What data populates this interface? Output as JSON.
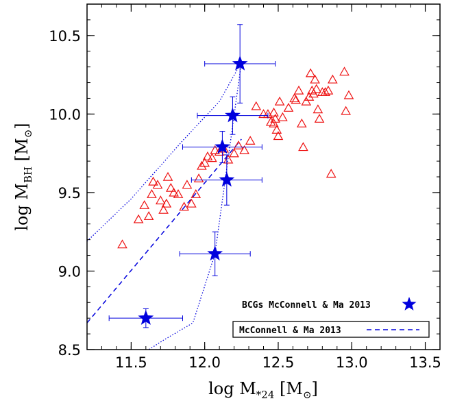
{
  "chart_data": {
    "type": "scatter",
    "xlabel": {
      "main": "log M",
      "sub": "*24",
      "unit": "[M",
      "sun": "⊙",
      "close": "]"
    },
    "ylabel": {
      "main": "log M",
      "sub": "BH",
      "unit": "[M",
      "sun": "⊙",
      "close": "]"
    },
    "xlim": [
      11.2,
      13.6
    ],
    "ylim": [
      8.5,
      10.7
    ],
    "xticks": [
      "11.5",
      "12.0",
      "12.5",
      "13.0",
      "13.5"
    ],
    "yticks": [
      "8.5",
      "9.0",
      "9.5",
      "10.0",
      "10.5"
    ],
    "grid": false,
    "colors": {
      "triangles": "#ee1111",
      "stars": "#0000dd",
      "relation": "#0000dd",
      "axis": "#000000"
    },
    "triangles": [
      [
        11.44,
        9.17
      ],
      [
        11.55,
        9.33
      ],
      [
        11.59,
        9.42
      ],
      [
        11.62,
        9.35
      ],
      [
        11.64,
        9.49
      ],
      [
        11.65,
        9.57
      ],
      [
        11.68,
        9.55
      ],
      [
        11.7,
        9.45
      ],
      [
        11.72,
        9.39
      ],
      [
        11.74,
        9.43
      ],
      [
        11.75,
        9.6
      ],
      [
        11.77,
        9.53
      ],
      [
        11.79,
        9.5
      ],
      [
        11.82,
        9.49
      ],
      [
        11.86,
        9.41
      ],
      [
        11.88,
        9.55
      ],
      [
        11.91,
        9.43
      ],
      [
        11.94,
        9.49
      ],
      [
        11.96,
        9.59
      ],
      [
        11.98,
        9.67
      ],
      [
        12.0,
        9.69
      ],
      [
        12.02,
        9.73
      ],
      [
        12.05,
        9.72
      ],
      [
        12.07,
        9.77
      ],
      [
        12.1,
        9.76
      ],
      [
        12.13,
        9.78
      ],
      [
        12.16,
        9.71
      ],
      [
        12.2,
        9.75
      ],
      [
        12.23,
        9.8
      ],
      [
        12.27,
        9.77
      ],
      [
        12.31,
        9.83
      ],
      [
        12.35,
        10.05
      ],
      [
        12.4,
        10.0
      ],
      [
        12.43,
        10.0
      ],
      [
        12.45,
        9.95
      ],
      [
        12.47,
        9.94
      ],
      [
        12.48,
        9.97
      ],
      [
        12.49,
        9.9
      ],
      [
        12.5,
        9.86
      ],
      [
        12.51,
        10.08
      ],
      [
        12.53,
        9.98
      ],
      [
        12.57,
        10.04
      ],
      [
        12.61,
        10.1
      ],
      [
        12.64,
        10.15
      ],
      [
        12.66,
        9.94
      ],
      [
        12.67,
        9.79
      ],
      [
        12.69,
        10.08
      ],
      [
        12.71,
        10.11
      ],
      [
        12.72,
        10.26
      ],
      [
        12.73,
        10.15
      ],
      [
        12.74,
        10.13
      ],
      [
        12.75,
        10.22
      ],
      [
        12.76,
        10.16
      ],
      [
        12.77,
        10.03
      ],
      [
        12.78,
        9.97
      ],
      [
        12.8,
        10.14
      ],
      [
        12.84,
        10.15
      ],
      [
        12.86,
        9.62
      ],
      [
        12.87,
        10.22
      ],
      [
        12.95,
        10.27
      ],
      [
        12.96,
        10.02
      ],
      [
        12.98,
        10.12
      ],
      [
        12.82,
        10.14
      ],
      [
        12.62,
        10.09
      ],
      [
        12.47,
        10.01
      ]
    ],
    "stars": [
      {
        "x": 11.6,
        "y": 8.7,
        "xerr": 0.25,
        "yerr": 0.06
      },
      {
        "x": 12.07,
        "y": 9.11,
        "xerr": 0.24,
        "yerr": 0.14
      },
      {
        "x": 12.15,
        "y": 9.58,
        "xerr": 0.24,
        "yerr": 0.16
      },
      {
        "x": 12.12,
        "y": 9.79,
        "xerr": 0.27,
        "yerr": 0.1
      },
      {
        "x": 12.19,
        "y": 9.99,
        "xerr": 0.24,
        "yerr": 0.12
      },
      {
        "x": 12.24,
        "y": 10.32,
        "xerr": 0.24,
        "yerr": 0.25
      }
    ],
    "relation": [
      [
        11.2,
        8.67
      ],
      [
        12.25,
        9.84
      ]
    ],
    "envelope": [
      [
        11.2,
        9.19
      ],
      [
        11.5,
        9.46
      ],
      [
        11.85,
        9.83
      ],
      [
        12.1,
        10.08
      ],
      [
        12.25,
        10.33
      ],
      [
        12.07,
        9.11
      ],
      [
        11.92,
        8.67
      ],
      [
        11.72,
        8.56
      ],
      [
        11.62,
        8.5
      ]
    ],
    "legend": {
      "stars_label": "BCGs McConnell & Ma 2013",
      "line_label": "McConnell & Ma 2013"
    }
  }
}
